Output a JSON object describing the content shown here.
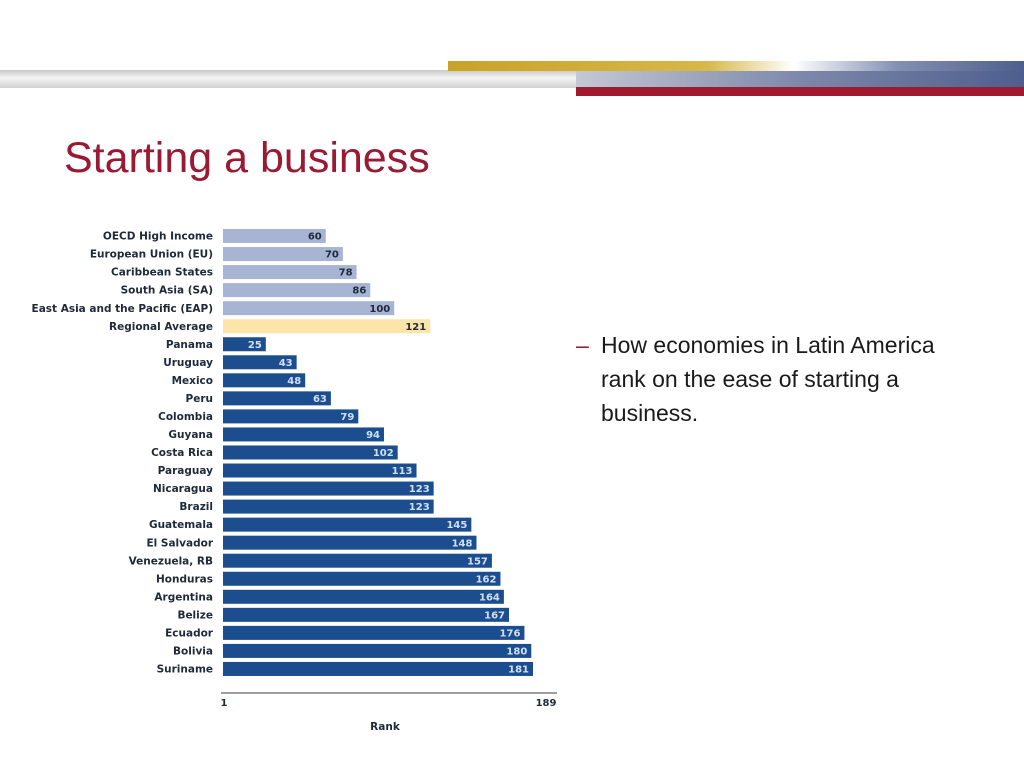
{
  "theme": {
    "title_color": "#9b1a33",
    "gold": "#c9a227",
    "navy": "#4e5f8d",
    "maroon": "#a0192f",
    "silver": "#d4d4d4",
    "bar_dark": "#1c4e8f",
    "bar_light": "#a7b4d3",
    "bar_highlight": "#fde4a9"
  },
  "slide": {
    "title": "Starting a business",
    "bullet_dash": "–",
    "bullet_text": "How economies in Latin America rank on the ease of starting a business."
  },
  "chart_data": {
    "type": "bar",
    "orientation": "horizontal",
    "categories": [
      "OECD High Income",
      "European Union (EU)",
      "Caribbean States",
      "South Asia (SA)",
      "East Asia and the Pacific (EAP)",
      "Regional Average",
      "Panama",
      "Uruguay",
      "Mexico",
      "Peru",
      "Colombia",
      "Guyana",
      "Costa Rica",
      "Paraguay",
      "Nicaragua",
      "Brazil",
      "Guatemala",
      "El Salvador",
      "Venezuela, RB",
      "Honduras",
      "Argentina",
      "Belize",
      "Ecuador",
      "Bolivia",
      "Suriname"
    ],
    "values": [
      60,
      70,
      78,
      86,
      100,
      121,
      25,
      43,
      48,
      63,
      79,
      94,
      102,
      113,
      123,
      123,
      145,
      148,
      157,
      162,
      164,
      167,
      176,
      180,
      181
    ],
    "groups": [
      "benchmark",
      "benchmark",
      "benchmark",
      "benchmark",
      "benchmark",
      "average",
      "economy",
      "economy",
      "economy",
      "economy",
      "economy",
      "economy",
      "economy",
      "economy",
      "economy",
      "economy",
      "economy",
      "economy",
      "economy",
      "economy",
      "economy",
      "economy",
      "economy",
      "economy",
      "economy"
    ],
    "xlabel": "Rank",
    "xlim": [
      1,
      189
    ],
    "tick_labels": [
      "1",
      "189"
    ],
    "title": "",
    "ylabel": "",
    "grid": false,
    "legend": "none"
  }
}
